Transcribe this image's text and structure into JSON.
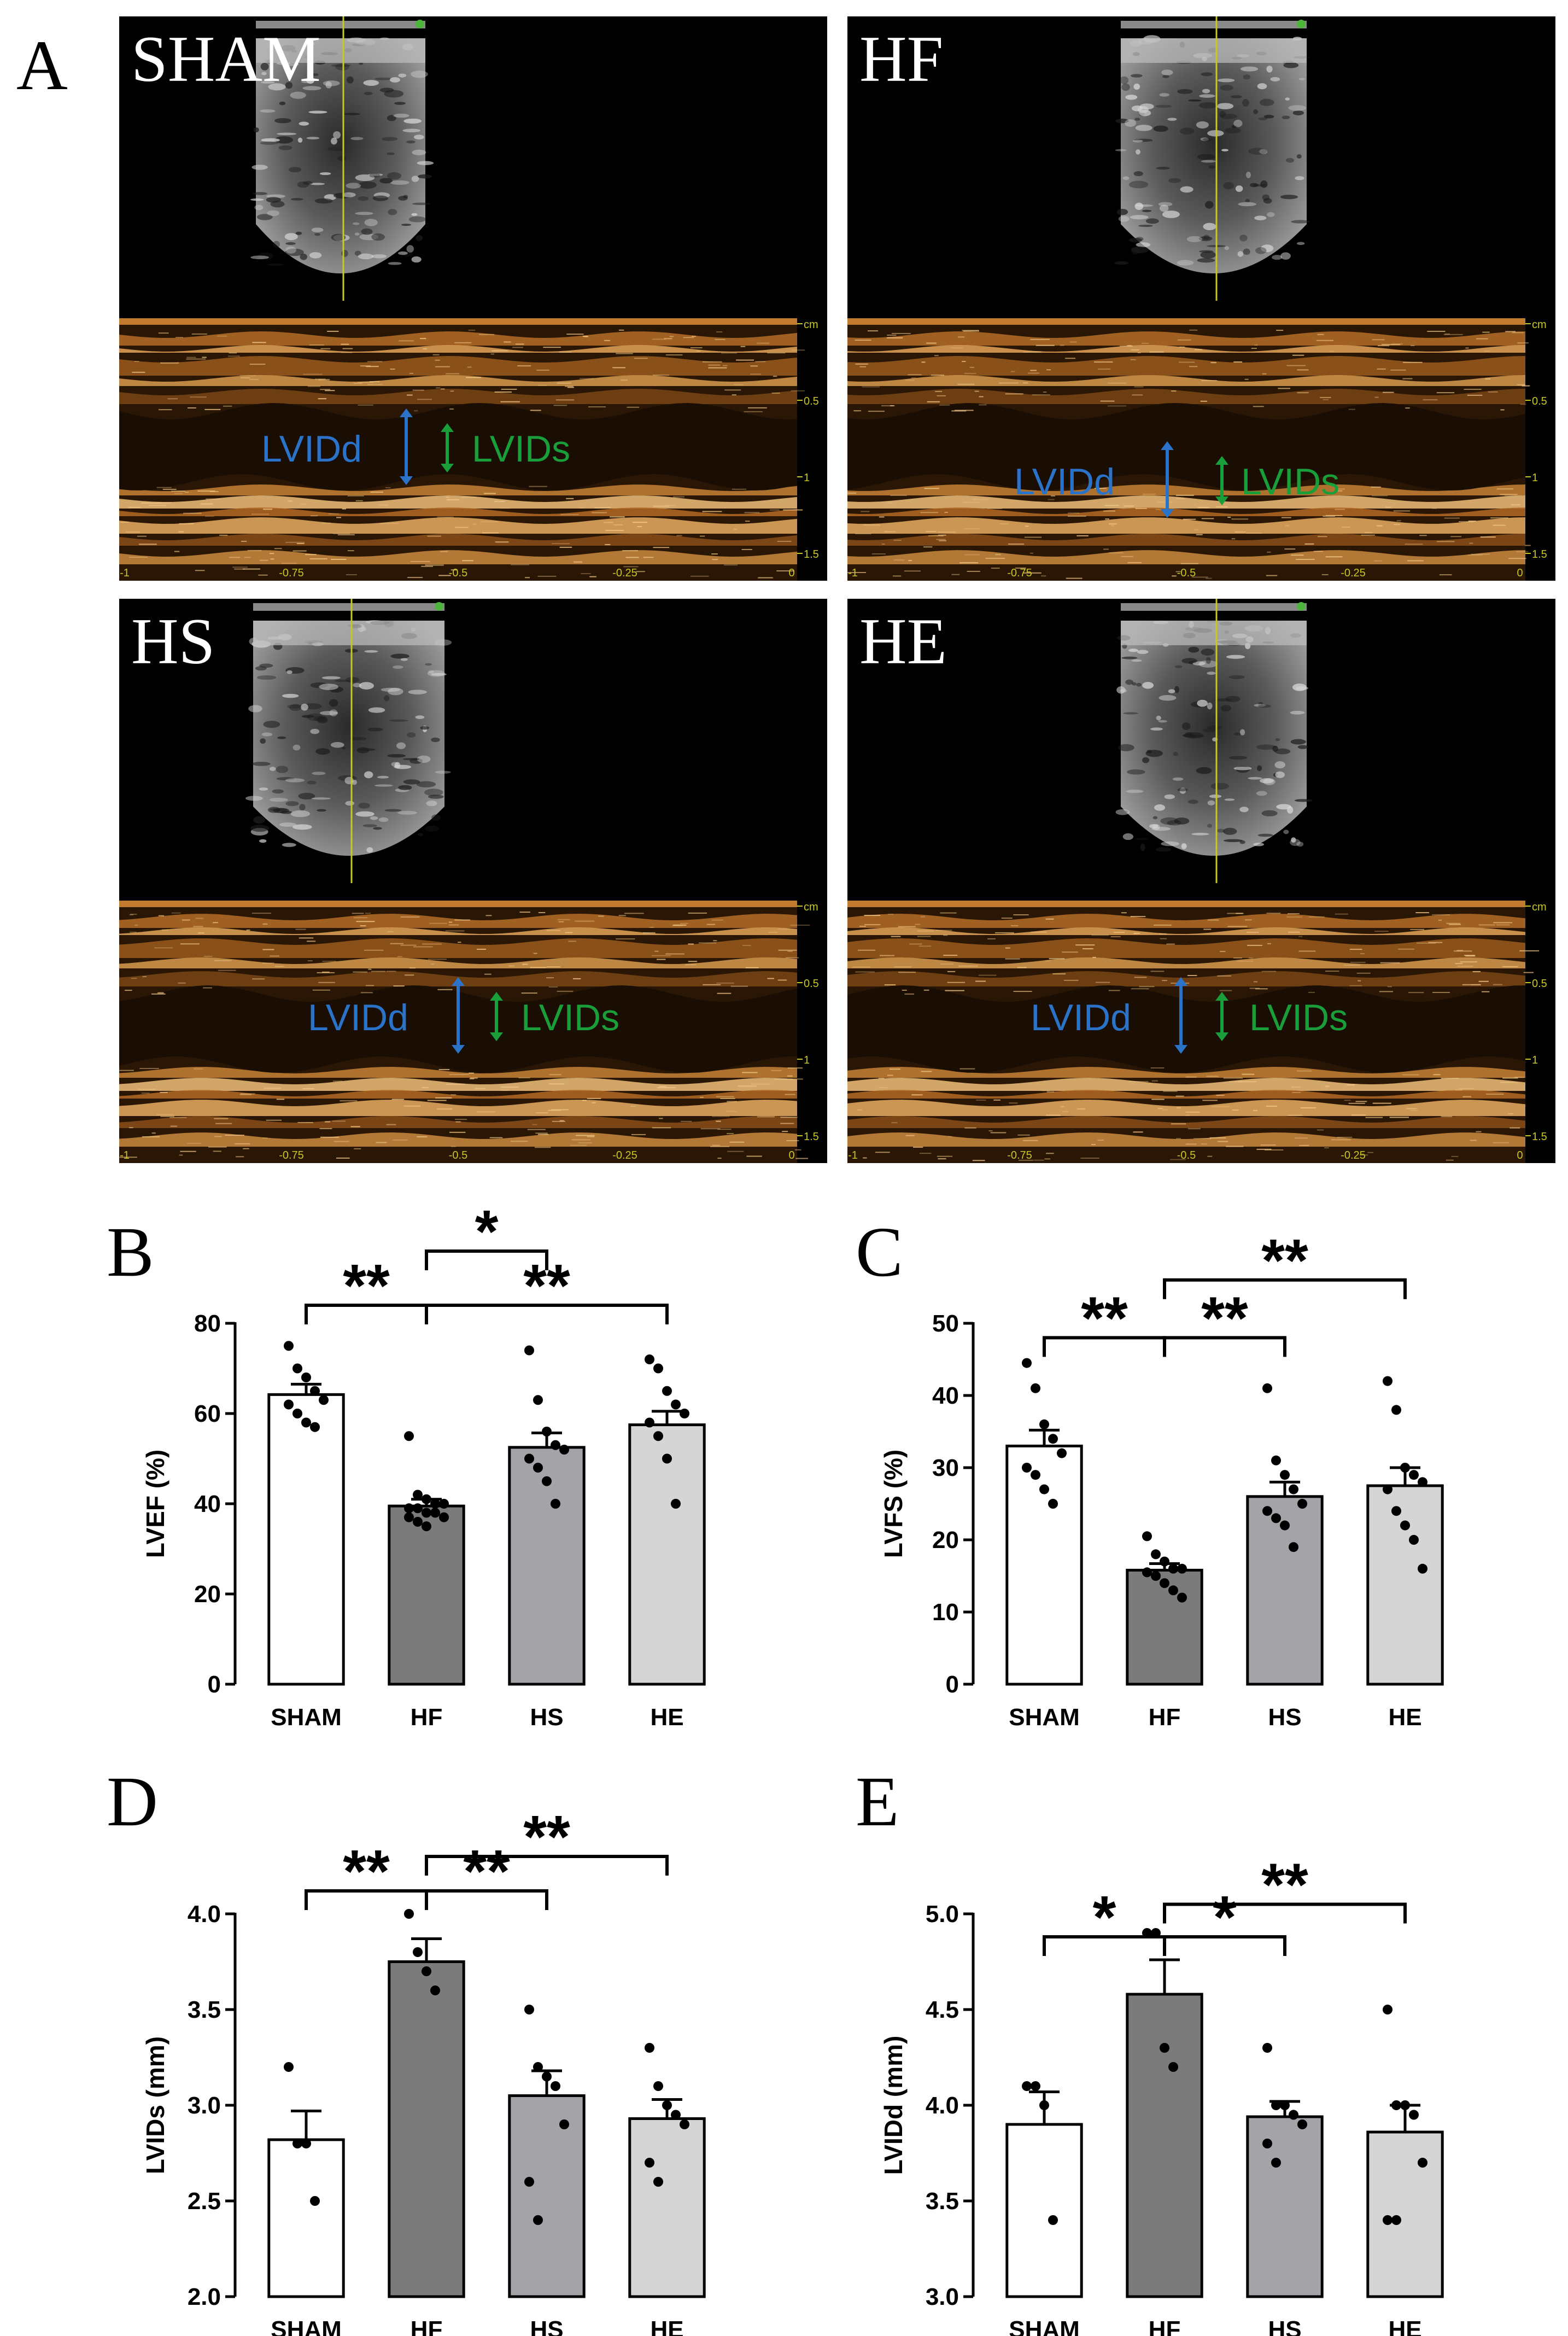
{
  "panel_letters": {
    "a": "A",
    "b": "B",
    "c": "C",
    "d": "D",
    "e": "E"
  },
  "echo_panels": [
    {
      "label": "SHAM",
      "lvidd_label": "LVIDd",
      "lvids_label": "LVIDs"
    },
    {
      "label": "HF",
      "lvidd_label": "LVIDd",
      "lvids_label": "LVIDs"
    },
    {
      "label": "HS",
      "lvidd_label": "LVIDd",
      "lvids_label": "LVIDs"
    },
    {
      "label": "HE",
      "lvidd_label": "LVIDd",
      "lvids_label": "LVIDs"
    }
  ],
  "echo_axis": {
    "x_ticks": [
      "-1",
      "-0.75",
      "-0.5",
      "-0.25",
      "0"
    ],
    "y_ticks": [
      "cm",
      "0.5",
      "1",
      "1.5"
    ]
  },
  "colors": {
    "lvidd": "#2a73c9",
    "lvids": "#1a9e3a",
    "sham": "#ffffff",
    "hf": "#7b7b7b",
    "hs": "#a4a4a8",
    "he": "#d5d5d5"
  },
  "chart_data": [
    {
      "type": "bar",
      "panel": "B",
      "categories": [
        "SHAM",
        "HF",
        "HS",
        "HE"
      ],
      "values": [
        64.2,
        39.5,
        52.5,
        57.5
      ],
      "errors": [
        2.3,
        1.5,
        3.2,
        3.0
      ],
      "points": [
        [
          75,
          70,
          68,
          65,
          63,
          62,
          60,
          58,
          57
        ],
        [
          55,
          42,
          41,
          40,
          40,
          39,
          39,
          38,
          38,
          37,
          37,
          36,
          35
        ],
        [
          74,
          63,
          56,
          53,
          52,
          50,
          48,
          45,
          40
        ],
        [
          72,
          70,
          65,
          62,
          60,
          58,
          55,
          50,
          40
        ]
      ],
      "ylabel": "LVEF (%)",
      "ylim": [
        0,
        80
      ],
      "yticks": [
        "0",
        "20",
        "40",
        "60",
        "80"
      ],
      "significance": [
        {
          "from": 0,
          "to": 1,
          "label": "**",
          "y": 84
        },
        {
          "from": 1,
          "to": 2,
          "label": "*",
          "y": 96
        },
        {
          "from": 1,
          "to": 3,
          "label": "**",
          "y": 84
        }
      ]
    },
    {
      "type": "bar",
      "panel": "C",
      "categories": [
        "SHAM",
        "HF",
        "HS",
        "HE"
      ],
      "values": [
        33.0,
        15.8,
        26.0,
        27.5
      ],
      "errors": [
        2.2,
        0.9,
        2.0,
        2.5
      ],
      "points": [
        [
          44.5,
          41,
          36,
          34,
          32,
          30,
          29,
          27,
          25
        ],
        [
          20.5,
          18,
          17,
          16,
          16,
          15.5,
          15,
          14,
          13,
          12
        ],
        [
          41,
          31,
          29,
          27,
          25,
          24,
          23,
          22,
          19
        ],
        [
          42,
          38,
          30,
          29,
          28,
          27,
          24,
          22,
          20,
          16
        ]
      ],
      "ylabel": "LVFS (%)",
      "ylim": [
        0,
        50
      ],
      "yticks": [
        "0",
        "10",
        "20",
        "30",
        "40",
        "50"
      ],
      "significance": [
        {
          "from": 0,
          "to": 1,
          "label": "**",
          "y": 48
        },
        {
          "from": 1,
          "to": 2,
          "label": "**",
          "y": 48
        },
        {
          "from": 1,
          "to": 3,
          "label": "**",
          "y": 56
        }
      ]
    },
    {
      "type": "bar",
      "panel": "D",
      "categories": [
        "SHAM",
        "HF",
        "HS",
        "HE"
      ],
      "values": [
        2.82,
        3.75,
        3.05,
        2.93
      ],
      "errors": [
        0.15,
        0.12,
        0.13,
        0.1
      ],
      "points": [
        [
          3.2,
          2.8,
          2.8,
          2.5
        ],
        [
          4.0,
          3.8,
          3.7,
          3.6
        ],
        [
          3.5,
          3.2,
          3.15,
          3.1,
          2.9,
          2.6,
          2.4
        ],
        [
          3.3,
          3.1,
          3.0,
          2.95,
          2.9,
          2.7,
          2.6
        ]
      ],
      "ylabel": "LVIDs (mm)",
      "ylim": [
        2.0,
        4.0
      ],
      "yticks": [
        "2.0",
        "2.5",
        "3.0",
        "3.5",
        "4.0"
      ],
      "significance": [
        {
          "from": 0,
          "to": 1,
          "label": "**",
          "y": 4.12
        },
        {
          "from": 1,
          "to": 2,
          "label": "**",
          "y": 4.12
        },
        {
          "from": 1,
          "to": 3,
          "label": "**",
          "y": 4.3
        }
      ]
    },
    {
      "type": "bar",
      "panel": "E",
      "categories": [
        "SHAM",
        "HF",
        "HS",
        "HE"
      ],
      "values": [
        3.9,
        4.58,
        3.94,
        3.86
      ],
      "errors": [
        0.17,
        0.18,
        0.08,
        0.14
      ],
      "points": [
        [
          4.1,
          4.1,
          4.0,
          3.4
        ],
        [
          4.9,
          4.9,
          4.3,
          4.2
        ],
        [
          4.3,
          4.0,
          4.0,
          3.95,
          3.9,
          3.8,
          3.7
        ],
        [
          4.5,
          4.0,
          4.0,
          3.95,
          3.7,
          3.4,
          3.4
        ]
      ],
      "ylabel": "LVIDd (mm)",
      "ylim": [
        3.0,
        5.0
      ],
      "yticks": [
        "3.0",
        "3.5",
        "4.0",
        "4.5",
        "5.0"
      ],
      "significance": [
        {
          "from": 0,
          "to": 1,
          "label": "*",
          "y": 4.88
        },
        {
          "from": 1,
          "to": 2,
          "label": "*",
          "y": 4.88
        },
        {
          "from": 1,
          "to": 3,
          "label": "**",
          "y": 5.05
        }
      ]
    }
  ]
}
